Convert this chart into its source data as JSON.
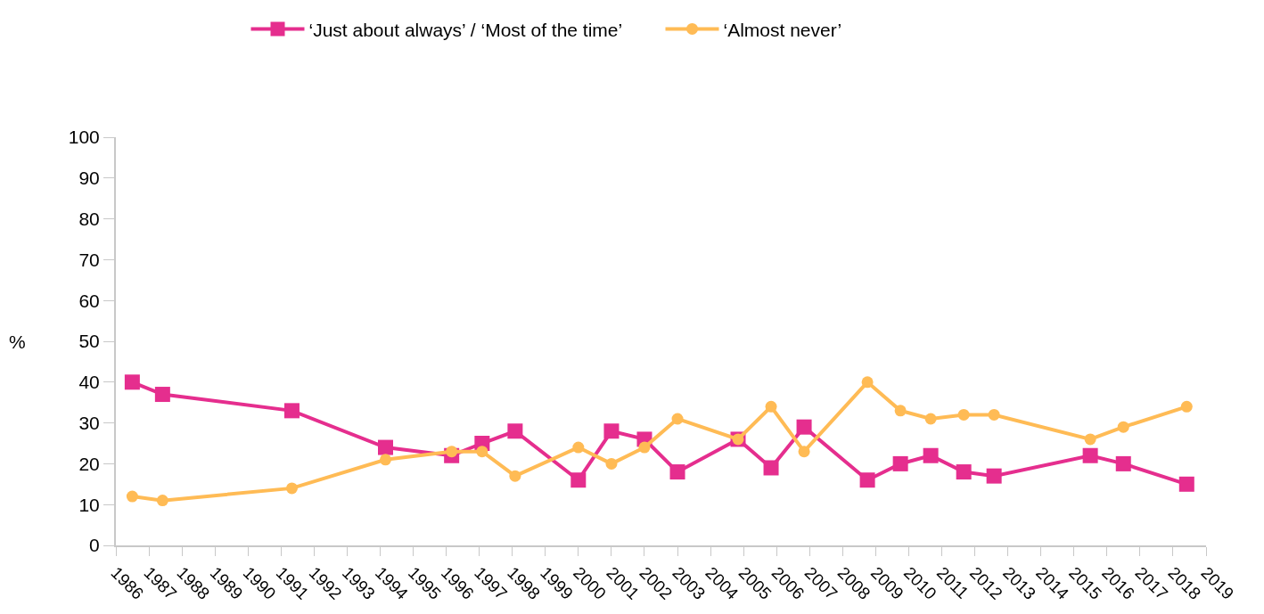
{
  "chart_data": {
    "type": "line",
    "ylabel": "%",
    "x": [
      "1986-07",
      "1987-06",
      "1991-05",
      "1994-03",
      "1996-03",
      "1997-02",
      "1998-02",
      "2000-01",
      "2001-01",
      "2002-01",
      "2003-01",
      "2004-11",
      "2005-11",
      "2006-11",
      "2008-10",
      "2009-10",
      "2010-09",
      "2011-09",
      "2012-08",
      "2015-07",
      "2016-07",
      "2018-06"
    ],
    "series": [
      {
        "name": "‘Just about always’ / ‘Most of the time’",
        "color": "#e52e8e",
        "marker": "square",
        "values": [
          40,
          37,
          33,
          24,
          22,
          25,
          28,
          16,
          28,
          26,
          18,
          26,
          19,
          29,
          16,
          20,
          22,
          18,
          17,
          22,
          20,
          15
        ]
      },
      {
        "name": "‘Almost never’",
        "color": "#ffbb55",
        "marker": "circle",
        "values": [
          12,
          11,
          14,
          21,
          23,
          23,
          17,
          24,
          20,
          24,
          31,
          26,
          34,
          23,
          40,
          33,
          31,
          32,
          32,
          26,
          29,
          34
        ]
      }
    ],
    "xlim": [
      "1986",
      "2019"
    ],
    "xticks": [
      "1986",
      "1987",
      "1988",
      "1989",
      "1990",
      "1991",
      "1992",
      "1993",
      "1994",
      "1995",
      "1996",
      "1997",
      "1998",
      "1999",
      "2000",
      "2001",
      "2002",
      "2003",
      "2004",
      "2005",
      "2006",
      "2007",
      "2008",
      "2009",
      "2010",
      "2011",
      "2012",
      "2013",
      "2014",
      "2015",
      "2016",
      "2017",
      "2018",
      "2019"
    ],
    "ylim": [
      0,
      100
    ],
    "yticks": [
      0,
      10,
      20,
      30,
      40,
      50,
      60,
      70,
      80,
      90,
      100
    ],
    "legend": "top",
    "line_style": "solid"
  }
}
